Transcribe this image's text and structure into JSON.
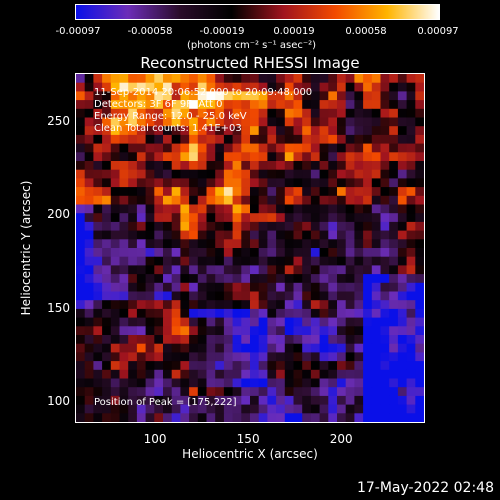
{
  "colorbar": {
    "ticks": [
      "-0.00097",
      "-0.00058",
      "-0.00019",
      "0.00019",
      "0.00058",
      "0.00097"
    ],
    "units": "(photons cm⁻² s⁻¹ asec⁻²)",
    "colors": [
      "#0a10e8",
      "#6c2db8",
      "#2a0c2a",
      "#000000",
      "#a0141e",
      "#f24a00",
      "#ffb400",
      "#ffffff"
    ]
  },
  "title": "Reconstructed RHESSI Image",
  "info": {
    "time": "11-Sep-2014 20:06:52.000 to 20:09:48.000",
    "detectors": "Detectors: 3F 6F 9F, Att 0",
    "energy": "Energy Range: 12.0 - 25.0 keV",
    "clean": "Clean     Total counts: 1.41E+03",
    "peak": "Position of Peak = [175,222]"
  },
  "axes": {
    "xlabel": "Heliocentric X (arcsec)",
    "ylabel": "Heliocentric Y (arcsec)",
    "xticks": [
      "100",
      "150",
      "200"
    ],
    "xtick_values": [
      100,
      150,
      200
    ],
    "yticks": [
      "100",
      "150",
      "200",
      "250"
    ],
    "ytick_values": [
      100,
      150,
      200,
      250
    ],
    "xlim": [
      57,
      245
    ],
    "ylim": [
      88,
      276
    ]
  },
  "timestamp": "17-May-2022 02:48"
}
